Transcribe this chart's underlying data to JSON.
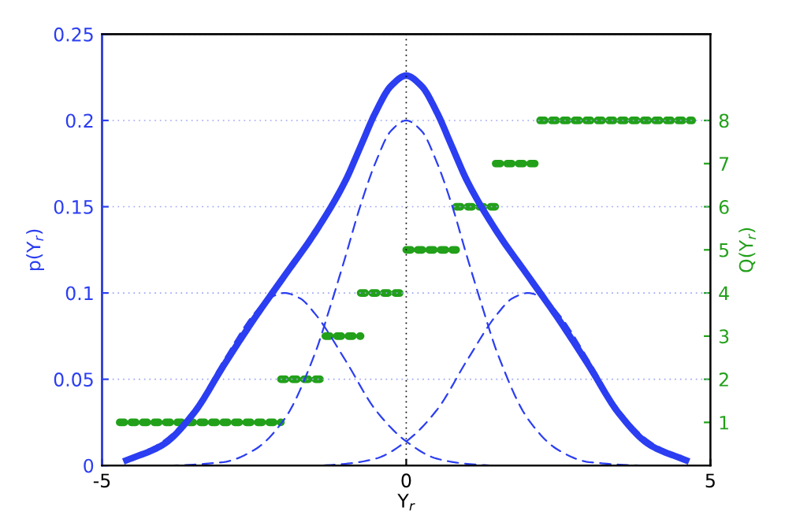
{
  "chart_data": {
    "type": "line",
    "xlabel": "Y$_{r}$",
    "ylabel": "p(Y$_{r}$)",
    "y2label": "Q(Y$_{r}$)",
    "xlim": [
      -5,
      5
    ],
    "ylim": [
      0,
      0.25
    ],
    "y2lim": [
      0,
      10
    ],
    "xticks": [
      -5,
      0,
      5
    ],
    "yticks": [
      0,
      0.05,
      0.1,
      0.15,
      0.2,
      0.25
    ],
    "y2ticks": [
      1,
      2,
      3,
      4,
      5,
      6,
      7,
      8
    ],
    "grid": "y",
    "ref_lines": [
      {
        "axis": "x",
        "value": 0,
        "color": "#000000",
        "line_style": "dotted"
      }
    ],
    "series": [
      {
        "line_style": "solid",
        "color": "#2b3ef2",
        "x": [
          -4.6,
          -4,
          -3.5,
          -3,
          -2.5,
          -2,
          -1.5,
          -1,
          -0.75,
          -0.5,
          -0.25,
          0,
          0.25,
          0.5,
          0.75,
          1,
          1.5,
          2,
          2.5,
          3,
          3.5,
          4,
          4.6
        ],
        "values": [
          0.003,
          0.012,
          0.03,
          0.058,
          0.085,
          0.11,
          0.135,
          0.165,
          0.185,
          0.205,
          0.22,
          0.226,
          0.22,
          0.205,
          0.185,
          0.165,
          0.135,
          0.11,
          0.085,
          0.058,
          0.03,
          0.012,
          0.003
        ]
      },
      {
        "line_style": "dashed",
        "color": "#2b3ef2",
        "x": [
          -4.5,
          -4,
          -3,
          -2.5,
          -2,
          -1.5,
          -1.25,
          -1,
          -0.75,
          -0.5,
          -0.25,
          0,
          0.25,
          0.5,
          0.75,
          1,
          1.25,
          1.5,
          2,
          2.5,
          3,
          4,
          4.5
        ],
        "values": [
          0,
          0,
          0.002,
          0.009,
          0.027,
          0.065,
          0.092,
          0.121,
          0.151,
          0.176,
          0.194,
          0.2,
          0.194,
          0.176,
          0.151,
          0.121,
          0.092,
          0.065,
          0.027,
          0.009,
          0.002,
          0,
          0
        ]
      },
      {
        "line_style": "dashed",
        "color": "#2b3ef2",
        "x": [
          -4.5,
          -4,
          -3.5,
          -3,
          -2.5,
          -2.25,
          -2,
          -1.75,
          -1.5,
          -1,
          -0.5,
          0,
          0.5,
          1,
          1.5,
          2,
          2.5
        ],
        "values": [
          0.005,
          0.014,
          0.032,
          0.061,
          0.088,
          0.097,
          0.1,
          0.097,
          0.088,
          0.061,
          0.032,
          0.014,
          0.004,
          0.001,
          0,
          0,
          0
        ]
      },
      {
        "line_style": "dashed",
        "color": "#2b3ef2",
        "x": [
          -2.5,
          -2,
          -1.5,
          -1,
          -0.5,
          0,
          0.5,
          1,
          1.5,
          1.75,
          2,
          2.25,
          2.5,
          3,
          3.5,
          4,
          4.5
        ],
        "values": [
          0,
          0,
          0,
          0.001,
          0.004,
          0.014,
          0.032,
          0.061,
          0.088,
          0.097,
          0.1,
          0.097,
          0.088,
          0.061,
          0.032,
          0.014,
          0.005
        ]
      },
      {
        "line_style": "dotted",
        "axis": "y2",
        "color": "#22a01a",
        "x": [
          -4.71,
          -2.06
        ],
        "values": [
          1,
          1
        ]
      },
      {
        "line_style": "dotted",
        "axis": "y2",
        "color": "#22a01a",
        "x": [
          -2.06,
          -1.33
        ],
        "values": [
          2,
          2
        ]
      },
      {
        "line_style": "dotted",
        "axis": "y2",
        "color": "#22a01a",
        "x": [
          -1.33,
          -0.75
        ],
        "values": [
          3,
          3
        ]
      },
      {
        "line_style": "dotted",
        "axis": "y2",
        "color": "#22a01a",
        "x": [
          -0.75,
          0
        ],
        "values": [
          4,
          4
        ]
      },
      {
        "line_style": "dotted",
        "axis": "y2",
        "color": "#22a01a",
        "x": [
          0,
          0.82
        ],
        "values": [
          5,
          5
        ]
      },
      {
        "line_style": "dotted",
        "axis": "y2",
        "color": "#22a01a",
        "x": [
          0.82,
          1.47
        ],
        "values": [
          6,
          6
        ]
      },
      {
        "line_style": "dotted",
        "axis": "y2",
        "color": "#22a01a",
        "x": [
          1.47,
          2.2
        ],
        "values": [
          7,
          7
        ]
      },
      {
        "line_style": "dotted",
        "axis": "y2",
        "color": "#22a01a",
        "x": [
          2.2,
          4.7
        ],
        "values": [
          8,
          8
        ]
      }
    ]
  }
}
